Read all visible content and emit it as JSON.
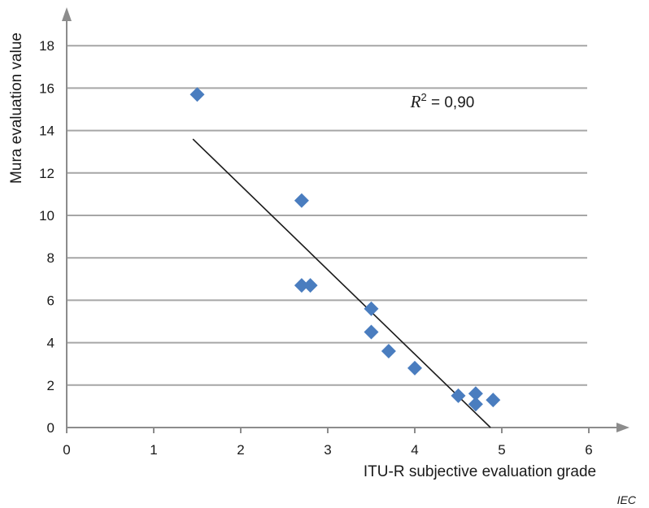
{
  "chart_data": {
    "type": "scatter",
    "xlabel": "ITU-R subjective evaluation grade",
    "ylabel": "Mura evaluation value",
    "xlim": [
      0,
      6
    ],
    "ylim": [
      0,
      18
    ],
    "x_ticks": [
      0,
      1,
      2,
      3,
      4,
      5,
      6
    ],
    "y_ticks": [
      0,
      2,
      4,
      6,
      8,
      10,
      12,
      14,
      16,
      18
    ],
    "grid": "horizontal",
    "marker": "diamond",
    "marker_color": "#4a7dbf",
    "points": [
      {
        "x": 1.5,
        "y": 15.7
      },
      {
        "x": 2.7,
        "y": 10.7
      },
      {
        "x": 2.7,
        "y": 6.7
      },
      {
        "x": 2.8,
        "y": 6.7
      },
      {
        "x": 3.5,
        "y": 5.6
      },
      {
        "x": 3.5,
        "y": 4.5
      },
      {
        "x": 3.7,
        "y": 3.6
      },
      {
        "x": 4.0,
        "y": 2.8
      },
      {
        "x": 4.5,
        "y": 1.5
      },
      {
        "x": 4.7,
        "y": 1.6
      },
      {
        "x": 4.7,
        "y": 1.1
      },
      {
        "x": 4.9,
        "y": 1.3
      }
    ],
    "trendline": {
      "x1": 1.45,
      "y1": 13.6,
      "x2": 4.87,
      "y2": 0
    },
    "annotation": {
      "r_symbol": "R",
      "r_power": "2",
      "rest": " = 0,90",
      "x": 3.95,
      "y": 15.1
    },
    "credit": "IEC"
  }
}
